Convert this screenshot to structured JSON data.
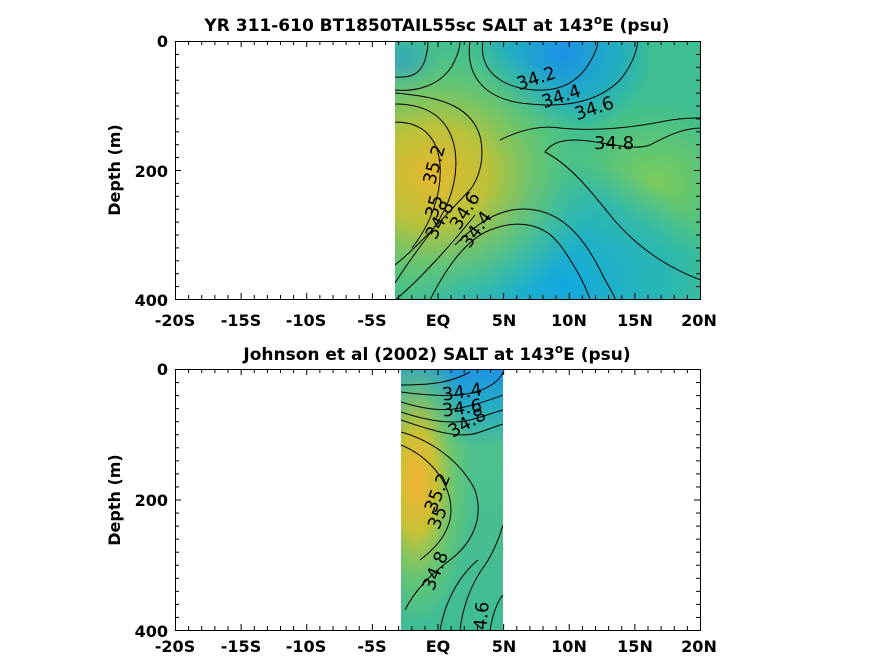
{
  "chart_data": [
    {
      "type": "contour",
      "title": "YR 311-610 BT1850TAIL55sc SALT at 143",
      "title_sup": "o",
      "title_tail": "E (psu)",
      "xlabel": "",
      "ylabel": "Depth (m)",
      "x_ticks": [
        "-20S",
        "-15S",
        "-10S",
        "-5S",
        "EQ",
        "5N",
        "10N",
        "15N",
        "20N"
      ],
      "y_ticks": [
        "0",
        "200",
        "400"
      ],
      "xlim": [
        -20,
        20
      ],
      "ylim": [
        0,
        400
      ],
      "y_reversed": true,
      "data_extent_lat": [
        -3.5,
        20
      ],
      "colormap": "parula",
      "contour_labels": [
        {
          "text": "34.2",
          "lat": 6.0,
          "depth": 50
        },
        {
          "text": "34.4",
          "lat": 7.5,
          "depth": 85
        },
        {
          "text": "34.6",
          "lat": 11.0,
          "depth": 100
        },
        {
          "text": "34.8",
          "lat": 13.5,
          "depth": 160
        },
        {
          "text": "35.2",
          "lat": -0.2,
          "depth": 205
        },
        {
          "text": "35",
          "lat": -0.7,
          "depth": 265
        },
        {
          "text": "34.8",
          "lat": 0.0,
          "depth": 280
        },
        {
          "text": "34.6",
          "lat": 1.5,
          "depth": 255
        },
        {
          "text": "34.4",
          "lat": 2.5,
          "depth": 290
        }
      ]
    },
    {
      "type": "contour",
      "title": "Johnson et al (2002) SALT at 143",
      "title_sup": "o",
      "title_tail": "E (psu)",
      "xlabel": "",
      "ylabel": "Depth (m)",
      "x_ticks": [
        "-20S",
        "-15S",
        "-10S",
        "-5S",
        "EQ",
        "5N",
        "10N",
        "15N",
        "20N"
      ],
      "y_ticks": [
        "0",
        "200",
        "400"
      ],
      "xlim": [
        -20,
        20
      ],
      "ylim": [
        0,
        400
      ],
      "y_reversed": true,
      "data_extent_lat": [
        -3.0,
        5.0
      ],
      "colormap": "parula",
      "contour_labels": [
        {
          "text": "34.4",
          "lat": 2.0,
          "depth": 35
        },
        {
          "text": "34.6",
          "lat": 2.0,
          "depth": 60
        },
        {
          "text": "34.8",
          "lat": 2.5,
          "depth": 85
        },
        {
          "text": "35.2",
          "lat": 0.0,
          "depth": 210
        },
        {
          "text": "35",
          "lat": 0.0,
          "depth": 245
        },
        {
          "text": "34.8",
          "lat": 0.0,
          "depth": 310
        },
        {
          "text": "34.6",
          "lat": 3.5,
          "depth": 410
        }
      ]
    }
  ]
}
